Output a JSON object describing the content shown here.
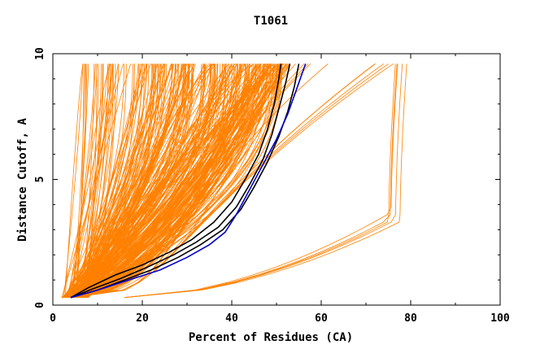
{
  "chart_data": {
    "type": "line",
    "title": "T1061",
    "xlabel": "Percent of Residues (CA)",
    "ylabel": "Distance Cutoff, A",
    "xlim": [
      0,
      100
    ],
    "ylim": [
      0,
      10
    ],
    "x_ticks": [
      "0",
      "20",
      "40",
      "60",
      "80",
      "100"
    ],
    "y_ticks": [
      "0",
      "5",
      "10"
    ],
    "grid": false,
    "legend": "none",
    "colors": {
      "models": "#ff8000",
      "highlight_black": "#000000",
      "highlight_blue": "#0000cc"
    },
    "series": [
      {
        "color": "#000000",
        "x": [
          4,
          8,
          14,
          20,
          26,
          31,
          36,
          40,
          43,
          46,
          48,
          49.5,
          50.5,
          51
        ],
        "y": [
          0.3,
          0.7,
          1.2,
          1.6,
          2.1,
          2.6,
          3.3,
          4.1,
          5.0,
          6.0,
          7.0,
          8.0,
          9.0,
          9.6
        ]
      },
      {
        "color": "#000000",
        "x": [
          4,
          9,
          15,
          21,
          27,
          32,
          37,
          41,
          44,
          47,
          49,
          50.5,
          52,
          53
        ],
        "y": [
          0.3,
          0.65,
          1.05,
          1.5,
          2.0,
          2.5,
          3.1,
          3.9,
          4.8,
          5.8,
          6.8,
          7.8,
          8.8,
          9.6
        ]
      },
      {
        "color": "#000000",
        "x": [
          4,
          10,
          16,
          22,
          28,
          33,
          38,
          42,
          45,
          48,
          50.5,
          52.5,
          54,
          55
        ],
        "y": [
          0.3,
          0.6,
          1.0,
          1.4,
          1.9,
          2.4,
          3.0,
          3.8,
          4.7,
          5.7,
          6.7,
          7.7,
          8.7,
          9.6
        ]
      },
      {
        "color": "#0000cc",
        "x": [
          4,
          10,
          17,
          24,
          30,
          35,
          38.5,
          41,
          44,
          47,
          50,
          52.5,
          54.5,
          56.5
        ],
        "y": [
          0.3,
          0.6,
          1.0,
          1.4,
          1.9,
          2.4,
          2.9,
          3.6,
          4.6,
          5.6,
          6.6,
          7.6,
          8.6,
          9.6
        ]
      }
    ]
  }
}
